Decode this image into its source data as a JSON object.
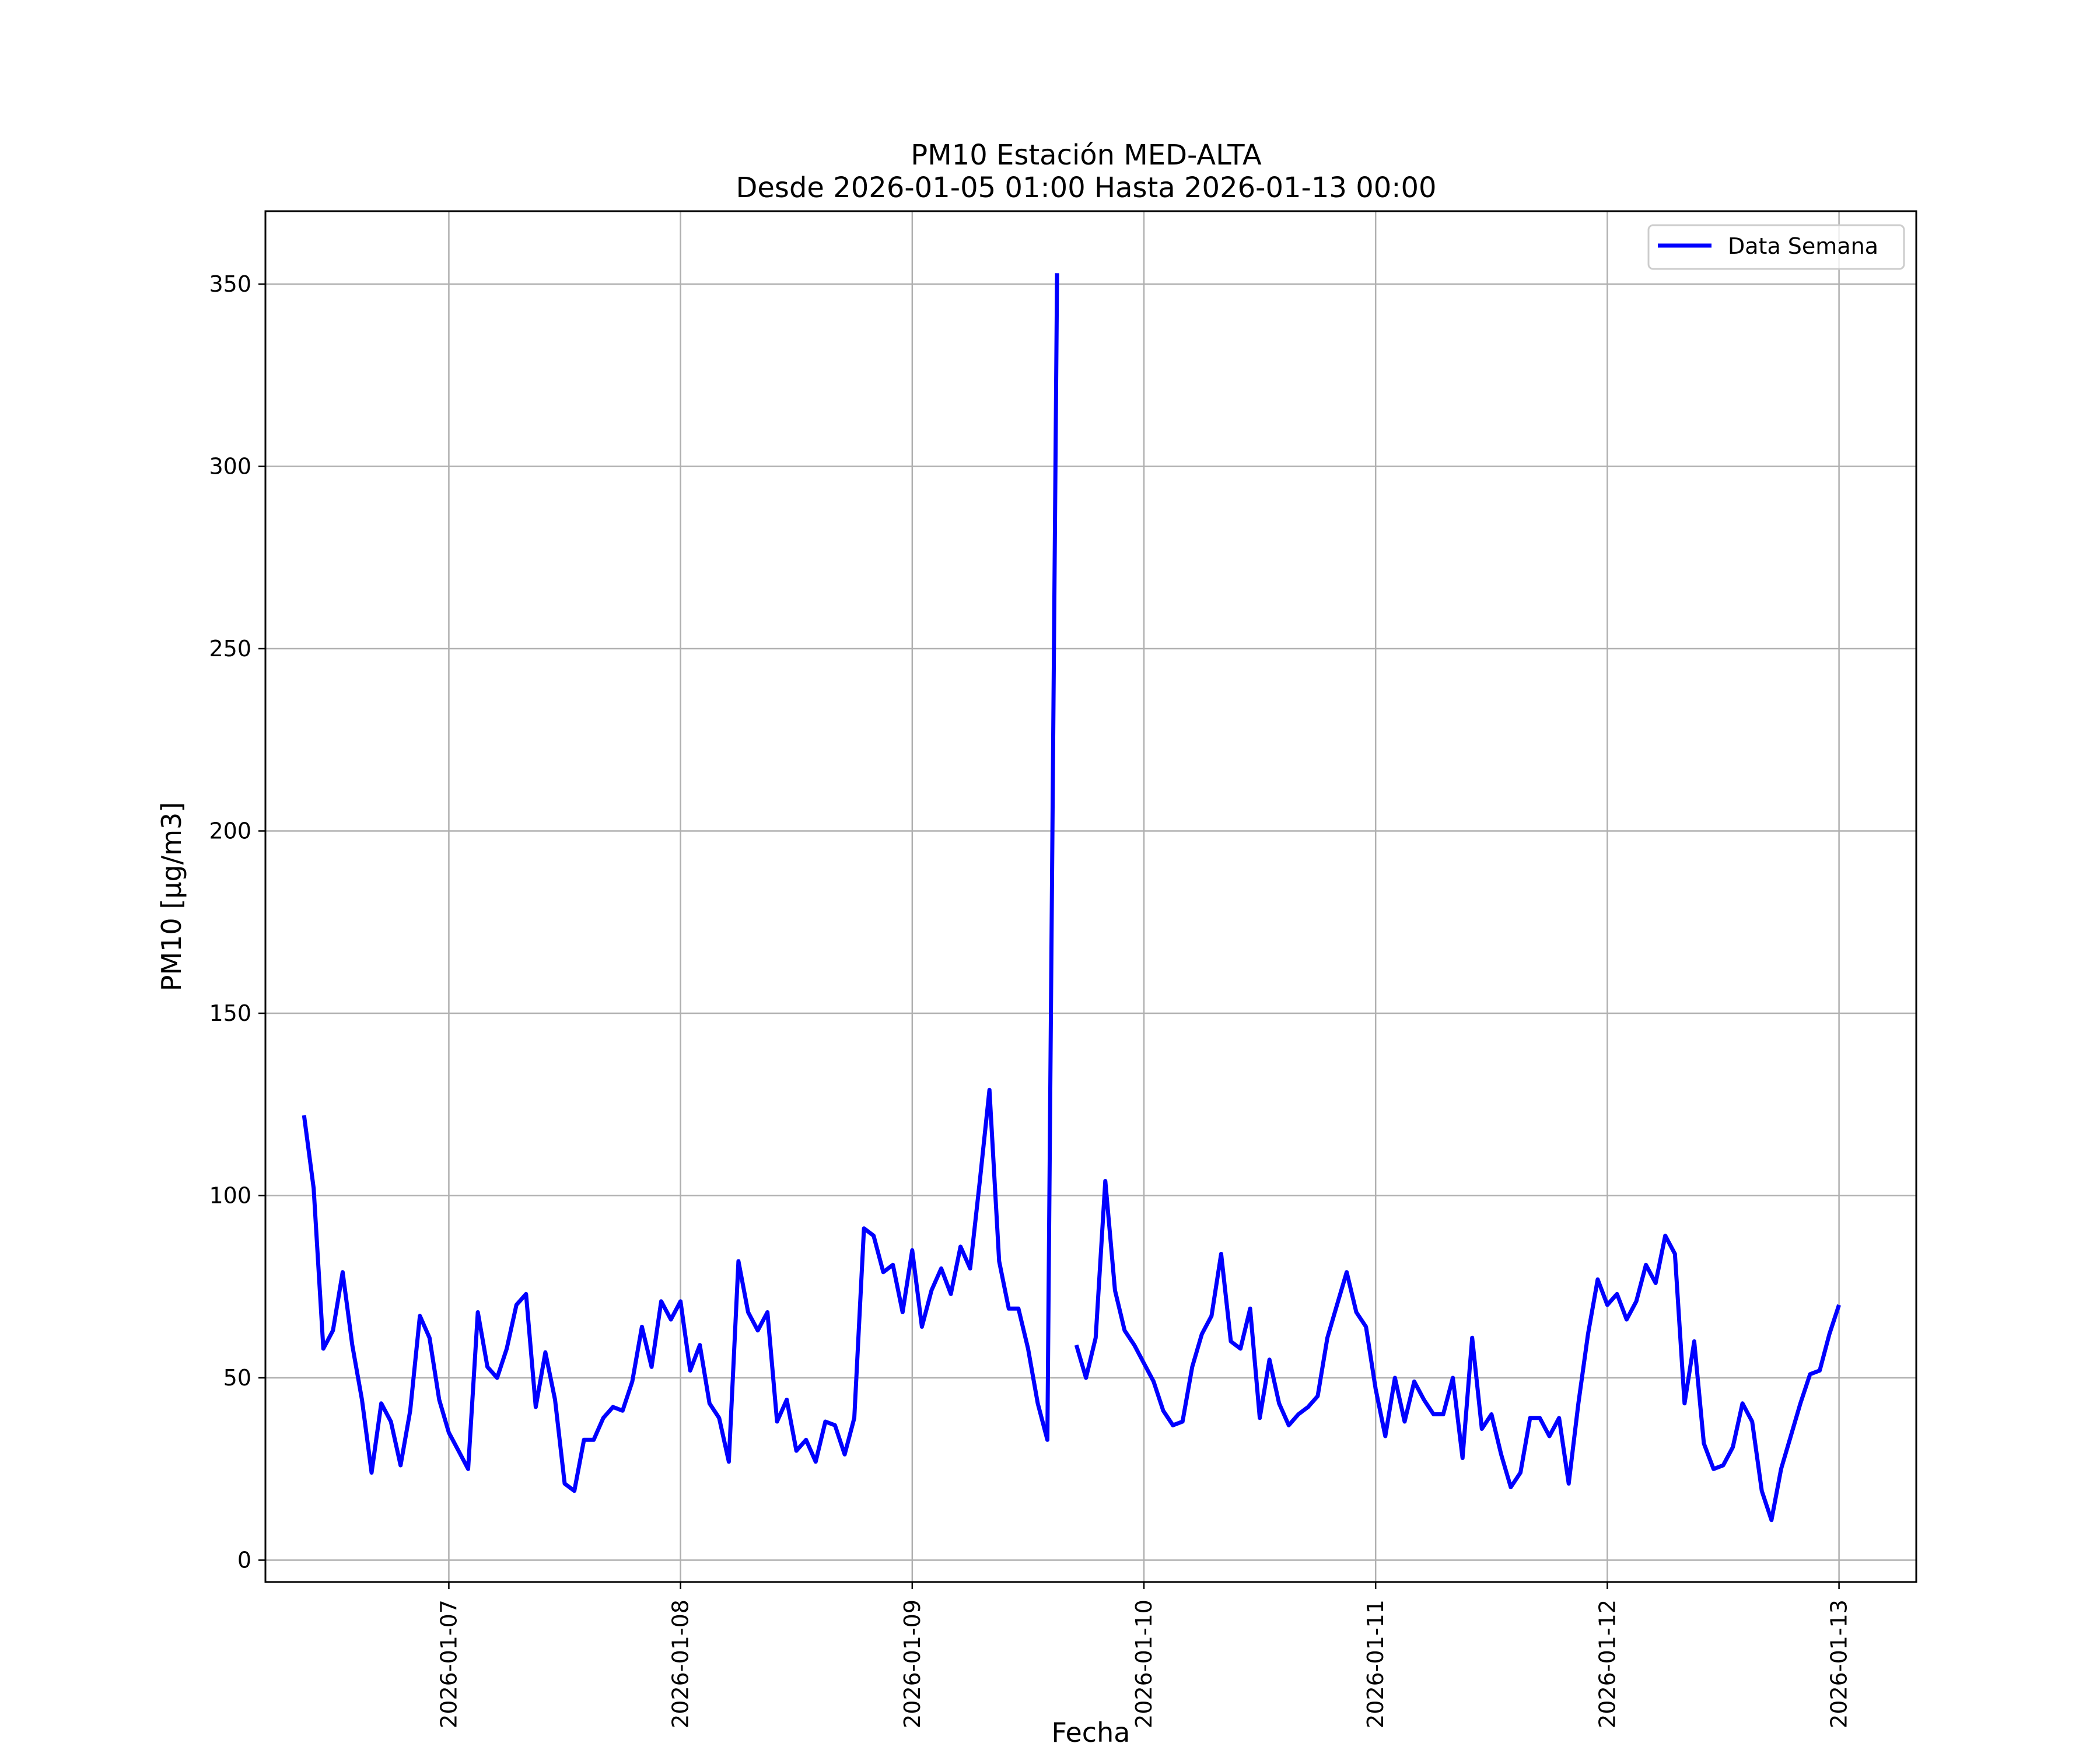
{
  "chart_data": {
    "type": "line",
    "title": "PM10 Estación MED-ALTA",
    "subtitle": "Desde 2026-01-05 01:00 Hasta 2026-01-13 00:00",
    "xlabel": "Fecha",
    "ylabel": "PM10 [μg/m3]",
    "ylim": [
      -6,
      370
    ],
    "xlim": [
      "2026-01-06 05:00",
      "2026-01-13 08:00"
    ],
    "grid": true,
    "legend_position": "top-right",
    "x_ticks": [
      "2026-01-07",
      "2026-01-08",
      "2026-01-09",
      "2026-01-10",
      "2026-01-11",
      "2026-01-12",
      "2026-01-13"
    ],
    "y_ticks": [
      0,
      50,
      100,
      150,
      200,
      250,
      300,
      350
    ],
    "series": [
      {
        "name": "Data Semana",
        "color": "#0000ff",
        "points": [
          [
            "2026-01-06 09:00",
            122
          ],
          [
            "2026-01-06 10:00",
            102
          ],
          [
            "2026-01-06 11:00",
            58
          ],
          [
            "2026-01-06 12:00",
            63
          ],
          [
            "2026-01-06 13:00",
            79
          ],
          [
            "2026-01-06 14:00",
            59
          ],
          [
            "2026-01-06 15:00",
            44
          ],
          [
            "2026-01-06 16:00",
            24
          ],
          [
            "2026-01-06 17:00",
            43
          ],
          [
            "2026-01-06 18:00",
            38
          ],
          [
            "2026-01-06 19:00",
            26
          ],
          [
            "2026-01-06 20:00",
            41
          ],
          [
            "2026-01-06 21:00",
            67
          ],
          [
            "2026-01-06 22:00",
            61
          ],
          [
            "2026-01-06 23:00",
            44
          ],
          [
            "2026-01-07 00:00",
            35
          ],
          [
            "2026-01-07 01:00",
            30
          ],
          [
            "2026-01-07 02:00",
            25
          ],
          [
            "2026-01-07 03:00",
            68
          ],
          [
            "2026-01-07 04:00",
            53
          ],
          [
            "2026-01-07 05:00",
            50
          ],
          [
            "2026-01-07 06:00",
            58
          ],
          [
            "2026-01-07 07:00",
            70
          ],
          [
            "2026-01-07 08:00",
            73
          ],
          [
            "2026-01-07 09:00",
            42
          ],
          [
            "2026-01-07 10:00",
            57
          ],
          [
            "2026-01-07 11:00",
            44
          ],
          [
            "2026-01-07 12:00",
            21
          ],
          [
            "2026-01-07 13:00",
            19
          ],
          [
            "2026-01-07 14:00",
            33
          ],
          [
            "2026-01-07 15:00",
            33
          ],
          [
            "2026-01-07 16:00",
            39
          ],
          [
            "2026-01-07 17:00",
            42
          ],
          [
            "2026-01-07 18:00",
            41
          ],
          [
            "2026-01-07 19:00",
            49
          ],
          [
            "2026-01-07 20:00",
            64
          ],
          [
            "2026-01-07 21:00",
            53
          ],
          [
            "2026-01-07 22:00",
            71
          ],
          [
            "2026-01-07 23:00",
            66
          ],
          [
            "2026-01-08 00:00",
            71
          ],
          [
            "2026-01-08 01:00",
            52
          ],
          [
            "2026-01-08 02:00",
            59
          ],
          [
            "2026-01-08 03:00",
            43
          ],
          [
            "2026-01-08 04:00",
            39
          ],
          [
            "2026-01-08 05:00",
            27
          ],
          [
            "2026-01-08 06:00",
            82
          ],
          [
            "2026-01-08 07:00",
            68
          ],
          [
            "2026-01-08 08:00",
            63
          ],
          [
            "2026-01-08 09:00",
            68
          ],
          [
            "2026-01-08 10:00",
            38
          ],
          [
            "2026-01-08 11:00",
            44
          ],
          [
            "2026-01-08 12:00",
            30
          ],
          [
            "2026-01-08 13:00",
            33
          ],
          [
            "2026-01-08 14:00",
            27
          ],
          [
            "2026-01-08 15:00",
            38
          ],
          [
            "2026-01-08 16:00",
            37
          ],
          [
            "2026-01-08 17:00",
            29
          ],
          [
            "2026-01-08 18:00",
            39
          ],
          [
            "2026-01-08 19:00",
            91
          ],
          [
            "2026-01-08 20:00",
            89
          ],
          [
            "2026-01-08 21:00",
            79
          ],
          [
            "2026-01-08 22:00",
            81
          ],
          [
            "2026-01-08 23:00",
            68
          ],
          [
            "2026-01-09 00:00",
            85
          ],
          [
            "2026-01-09 01:00",
            64
          ],
          [
            "2026-01-09 02:00",
            74
          ],
          [
            "2026-01-09 03:00",
            80
          ],
          [
            "2026-01-09 04:00",
            73
          ],
          [
            "2026-01-09 05:00",
            86
          ],
          [
            "2026-01-09 06:00",
            80
          ],
          [
            "2026-01-09 07:00",
            104
          ],
          [
            "2026-01-09 08:00",
            129
          ],
          [
            "2026-01-09 09:00",
            82
          ],
          [
            "2026-01-09 10:00",
            69
          ],
          [
            "2026-01-09 11:00",
            69
          ],
          [
            "2026-01-09 12:00",
            58
          ],
          [
            "2026-01-09 13:00",
            43
          ],
          [
            "2026-01-09 14:00",
            33
          ],
          [
            "2026-01-09 15:00",
            353
          ],
          [
            "2026-01-09 16:00",
            null
          ],
          [
            "2026-01-09 17:00",
            59
          ],
          [
            "2026-01-09 18:00",
            50
          ],
          [
            "2026-01-09 19:00",
            61
          ],
          [
            "2026-01-09 20:00",
            104
          ],
          [
            "2026-01-09 21:00",
            74
          ],
          [
            "2026-01-09 22:00",
            63
          ],
          [
            "2026-01-09 23:00",
            59
          ],
          [
            "2026-01-10 00:00",
            54
          ],
          [
            "2026-01-10 01:00",
            49
          ],
          [
            "2026-01-10 02:00",
            41
          ],
          [
            "2026-01-10 03:00",
            37
          ],
          [
            "2026-01-10 04:00",
            38
          ],
          [
            "2026-01-10 05:00",
            53
          ],
          [
            "2026-01-10 06:00",
            62
          ],
          [
            "2026-01-10 07:00",
            67
          ],
          [
            "2026-01-10 08:00",
            84
          ],
          [
            "2026-01-10 09:00",
            60
          ],
          [
            "2026-01-10 10:00",
            58
          ],
          [
            "2026-01-10 11:00",
            69
          ],
          [
            "2026-01-10 12:00",
            39
          ],
          [
            "2026-01-10 13:00",
            55
          ],
          [
            "2026-01-10 14:00",
            43
          ],
          [
            "2026-01-10 15:00",
            37
          ],
          [
            "2026-01-10 16:00",
            40
          ],
          [
            "2026-01-10 17:00",
            42
          ],
          [
            "2026-01-10 18:00",
            45
          ],
          [
            "2026-01-10 19:00",
            61
          ],
          [
            "2026-01-10 20:00",
            70
          ],
          [
            "2026-01-10 21:00",
            79
          ],
          [
            "2026-01-10 22:00",
            68
          ],
          [
            "2026-01-10 23:00",
            64
          ],
          [
            "2026-01-11 00:00",
            47
          ],
          [
            "2026-01-11 01:00",
            34
          ],
          [
            "2026-01-11 02:00",
            50
          ],
          [
            "2026-01-11 03:00",
            38
          ],
          [
            "2026-01-11 04:00",
            49
          ],
          [
            "2026-01-11 05:00",
            44
          ],
          [
            "2026-01-11 06:00",
            40
          ],
          [
            "2026-01-11 07:00",
            40
          ],
          [
            "2026-01-11 08:00",
            50
          ],
          [
            "2026-01-11 09:00",
            28
          ],
          [
            "2026-01-11 10:00",
            61
          ],
          [
            "2026-01-11 11:00",
            36
          ],
          [
            "2026-01-11 12:00",
            40
          ],
          [
            "2026-01-11 13:00",
            29
          ],
          [
            "2026-01-11 14:00",
            20
          ],
          [
            "2026-01-11 15:00",
            24
          ],
          [
            "2026-01-11 16:00",
            39
          ],
          [
            "2026-01-11 17:00",
            39
          ],
          [
            "2026-01-11 18:00",
            34
          ],
          [
            "2026-01-11 19:00",
            39
          ],
          [
            "2026-01-11 20:00",
            21
          ],
          [
            "2026-01-11 21:00",
            43
          ],
          [
            "2026-01-11 22:00",
            62
          ],
          [
            "2026-01-11 23:00",
            77
          ],
          [
            "2026-01-12 00:00",
            70
          ],
          [
            "2026-01-12 01:00",
            73
          ],
          [
            "2026-01-12 02:00",
            66
          ],
          [
            "2026-01-12 03:00",
            71
          ],
          [
            "2026-01-12 04:00",
            81
          ],
          [
            "2026-01-12 05:00",
            76
          ],
          [
            "2026-01-12 06:00",
            89
          ],
          [
            "2026-01-12 07:00",
            84
          ],
          [
            "2026-01-12 08:00",
            43
          ],
          [
            "2026-01-12 09:00",
            60
          ],
          [
            "2026-01-12 10:00",
            32
          ],
          [
            "2026-01-12 11:00",
            25
          ],
          [
            "2026-01-12 12:00",
            26
          ],
          [
            "2026-01-12 13:00",
            31
          ],
          [
            "2026-01-12 14:00",
            43
          ],
          [
            "2026-01-12 15:00",
            38
          ],
          [
            "2026-01-12 16:00",
            19
          ],
          [
            "2026-01-12 17:00",
            11
          ],
          [
            "2026-01-12 18:00",
            25
          ],
          [
            "2026-01-12 19:00",
            34
          ],
          [
            "2026-01-12 20:00",
            43
          ],
          [
            "2026-01-12 21:00",
            51
          ],
          [
            "2026-01-12 22:00",
            52
          ],
          [
            "2026-01-12 23:00",
            62
          ],
          [
            "2026-01-13 00:00",
            70
          ]
        ]
      }
    ]
  }
}
